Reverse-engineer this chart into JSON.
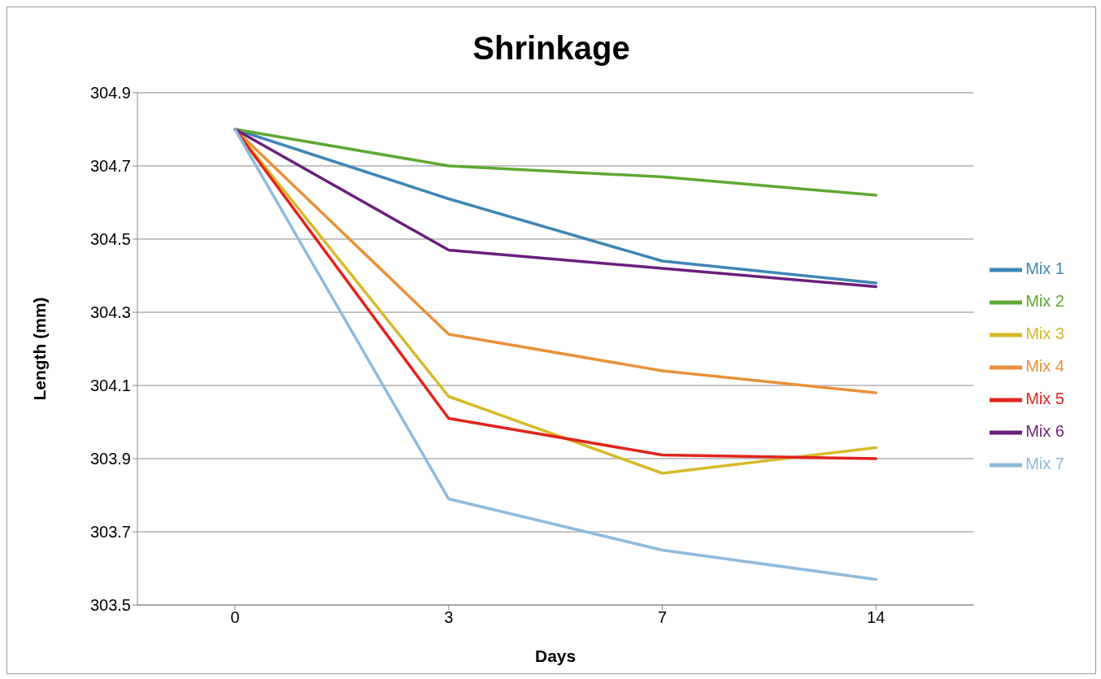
{
  "chart_data": {
    "type": "line",
    "title": "Shrinkage",
    "xlabel": "Days",
    "ylabel": "Length (mm)",
    "categories": [
      "0",
      "3",
      "7",
      "14"
    ],
    "series": [
      {
        "name": "Mix 1",
        "color": "#3f85b5",
        "values": [
          304.8,
          304.61,
          304.44,
          304.38
        ]
      },
      {
        "name": "Mix 2",
        "color": "#5ea832",
        "values": [
          304.8,
          304.7,
          304.67,
          304.62
        ]
      },
      {
        "name": "Mix 3",
        "color": "#d6b928",
        "values": [
          304.8,
          304.07,
          303.86,
          303.93
        ]
      },
      {
        "name": "Mix 4",
        "color": "#e8913a",
        "values": [
          304.8,
          304.24,
          304.14,
          304.08
        ]
      },
      {
        "name": "Mix 5",
        "color": "#e0241b",
        "values": [
          304.8,
          304.01,
          303.91,
          303.9
        ]
      },
      {
        "name": "Mix 6",
        "color": "#6b1f7c",
        "values": [
          304.8,
          304.47,
          304.42,
          304.37
        ]
      },
      {
        "name": "Mix 7",
        "color": "#8fbadc",
        "values": [
          304.8,
          303.79,
          303.65,
          303.57
        ]
      }
    ],
    "ylim": [
      303.5,
      304.9
    ],
    "yticks": [
      303.5,
      303.7,
      303.9,
      304.1,
      304.3,
      304.5,
      304.7,
      304.9
    ],
    "grid": "y",
    "legend": "right",
    "marker": "none",
    "line_style": "solid"
  }
}
